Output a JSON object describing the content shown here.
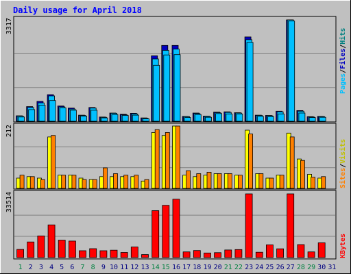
{
  "title": "Daily usage for April 2018",
  "colors": {
    "background": "#c0c0c0",
    "title": "#0000ff",
    "hits": "#00c0ff",
    "files": "#0000c0",
    "pages": "#00ffff",
    "visits": "#ffff00",
    "sites": "#ff8000",
    "kbytes": "#ff0000",
    "hits_label": "#008080",
    "weekend_day": "#008040",
    "weekday": "#000080",
    "grid": "#808080"
  },
  "legend": {
    "pages": "Pages",
    "files": "Files",
    "hits": "Hits",
    "sites": "Sites",
    "visits": "Visits",
    "kbytes": "KBytes",
    "sep": "/"
  },
  "chart_data": {
    "type": "bar",
    "title": "Daily usage for April 2018",
    "x": [
      1,
      2,
      3,
      4,
      5,
      6,
      7,
      8,
      9,
      10,
      11,
      12,
      13,
      14,
      15,
      16,
      17,
      18,
      19,
      20,
      21,
      22,
      23,
      24,
      25,
      26,
      27,
      28,
      29,
      30,
      31
    ],
    "weekend_days": [
      1,
      7,
      8,
      14,
      15,
      21,
      22,
      28,
      29
    ],
    "panels": [
      {
        "name": "hits",
        "ymax_label": "3317",
        "ylim": [
          0,
          3317
        ],
        "series": [
          {
            "name": "Hits",
            "values": [
              180,
              480,
              650,
              870,
              500,
              430,
              200,
              450,
              140,
              270,
              230,
              260,
              110,
              2140,
              2480,
              2480,
              160,
              270,
              170,
              300,
              310,
              280,
              2760,
              200,
              190,
              330,
              3317,
              350,
              150,
              160,
              0
            ]
          },
          {
            "name": "Files",
            "values": [
              170,
              450,
              600,
              830,
              470,
              400,
              190,
              430,
              130,
              260,
              210,
              240,
              100,
              2040,
              2320,
              2360,
              150,
              250,
              160,
              280,
              290,
              270,
              2670,
              190,
              180,
              310,
              3317,
              330,
              140,
              150,
              0
            ]
          },
          {
            "name": "Pages",
            "values": [
              140,
              380,
              530,
              680,
              440,
              360,
              170,
              360,
              110,
              220,
              190,
              200,
              80,
              1830,
              2170,
              2180,
              120,
              220,
              130,
              250,
              240,
              240,
              2580,
              160,
              150,
              240,
              3280,
              270,
              120,
              130,
              0
            ]
          }
        ]
      },
      {
        "name": "visits",
        "ymax_label": "212",
        "ylim": [
          0,
          212
        ],
        "series": [
          {
            "name": "Visits",
            "values": [
              35,
              40,
              35,
              175,
              45,
              45,
              35,
              30,
              40,
              40,
              40,
              40,
              25,
              190,
              180,
              212,
              45,
              40,
              45,
              50,
              50,
              45,
              198,
              50,
              35,
              45,
              188,
              100,
              48,
              35,
              0
            ]
          },
          {
            "name": "Sites",
            "values": [
              45,
              40,
              30,
              180,
              45,
              45,
              30,
              30,
              70,
              50,
              45,
              45,
              30,
              200,
              190,
              212,
              60,
              50,
              55,
              50,
              50,
              45,
              185,
              50,
              35,
              45,
              175,
              95,
              38,
              40,
              0
            ]
          }
        ]
      },
      {
        "name": "kbytes",
        "ymax_label": "33514",
        "ylim": [
          0,
          33514
        ],
        "series": [
          {
            "name": "KBytes",
            "values": [
              4300,
              8200,
              11400,
              17200,
              9200,
              8700,
              3600,
              4700,
              3600,
              3900,
              2700,
              5600,
              1600,
              24700,
              27500,
              30700,
              3000,
              3700,
              2400,
              2600,
              4000,
              4200,
              33514,
              2800,
              6700,
              4600,
              33514,
              6800,
              3000,
              7800,
              0
            ]
          }
        ]
      }
    ]
  }
}
